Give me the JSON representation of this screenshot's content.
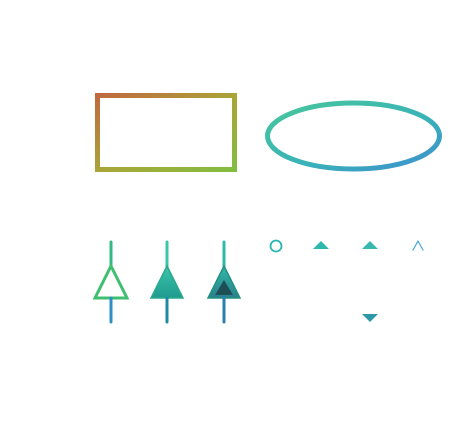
{
  "canvas": {
    "background": "#ffffff"
  },
  "shapes": [
    {
      "id": "rectangle",
      "kind": "rectangle",
      "gradient": [
        "#c0693f",
        "#a9a638",
        "#83bd3e"
      ]
    },
    {
      "id": "ellipse",
      "kind": "ellipse",
      "gradient": [
        "#48c79b",
        "#39b3b7",
        "#3e8fd0"
      ]
    }
  ],
  "connectors": [
    {
      "id": "connector-1",
      "marker": "hollow-triangle",
      "color_top": "#2fbf7a",
      "color_bottom": "#2e8fc7"
    },
    {
      "id": "connector-2",
      "marker": "solid-triangle",
      "color_top": "#3ac6a9",
      "color_bottom": "#1f9a8f"
    },
    {
      "id": "connector-3",
      "marker": "nested-triangle",
      "color_top": "#2fb9a7",
      "color_bottom": "#2a7f8d"
    },
    {
      "id": "connector-4",
      "marker": "circle-top",
      "color_top": "#2ab6b1",
      "color_bottom": "#2e79b9"
    },
    {
      "id": "connector-5",
      "marker": "arrow-top",
      "color_top": "#2db7ad",
      "color_bottom": "#317cba"
    },
    {
      "id": "connector-6",
      "marker": "double-arrow",
      "color_top": "#38b9b0",
      "color_bottom": "#2d98a8"
    },
    {
      "id": "connector-7",
      "marker": "thin-arrow",
      "color_top": "#40a6d4",
      "color_bottom": "#4cb6b6"
    }
  ]
}
